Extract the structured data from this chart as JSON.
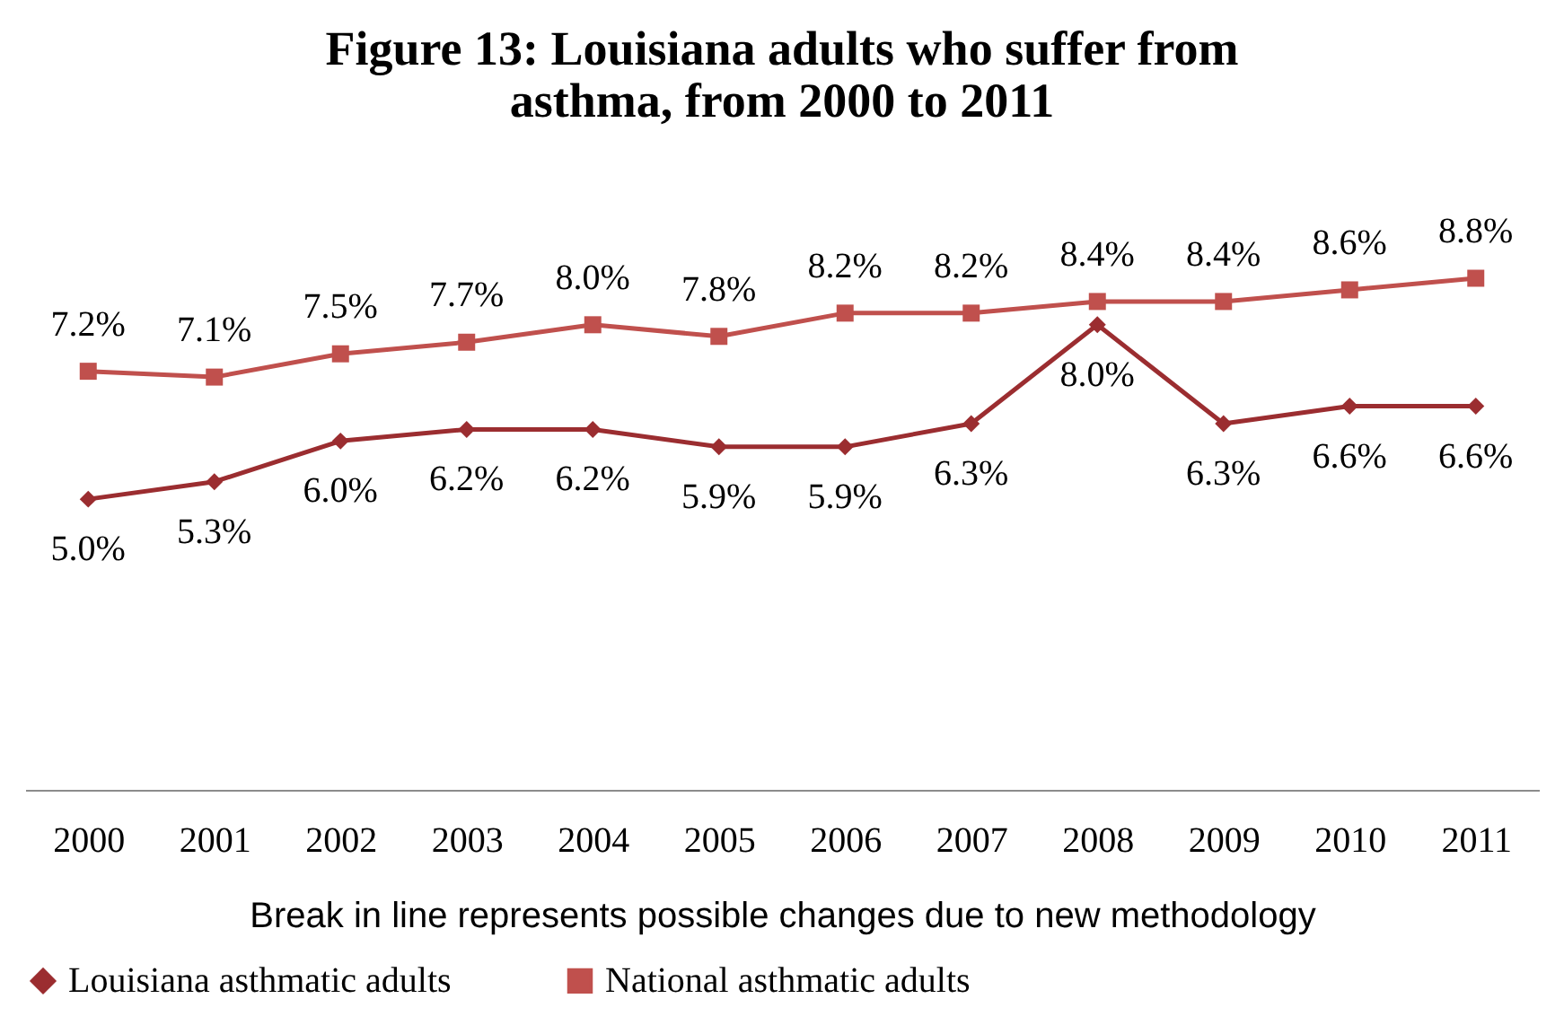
{
  "chart_data": {
    "type": "line",
    "title": [
      "Figure 13: Louisiana adults who suffer from",
      "asthma, from 2000 to 2011"
    ],
    "categories": [
      "2000",
      "2001",
      "2002",
      "2003",
      "2004",
      "2005",
      "2006",
      "2007",
      "2008",
      "2009",
      "2010",
      "2011"
    ],
    "series": [
      {
        "name": "Louisiana asthmatic adults",
        "color": "#9b2d30",
        "marker": "diamond",
        "values": [
          5.0,
          5.3,
          6.0,
          6.2,
          6.2,
          5.9,
          5.9,
          6.3,
          8.0,
          6.3,
          6.6,
          6.6
        ],
        "value_labels": [
          "5.0%",
          "5.3%",
          "6.0%",
          "6.2%",
          "6.2%",
          "5.9%",
          "5.9%",
          "6.3%",
          "8.0%",
          "6.3%",
          "6.6%",
          "6.6%"
        ]
      },
      {
        "name": "National asthmatic adults",
        "color": "#c0504d",
        "marker": "square",
        "values": [
          7.2,
          7.1,
          7.5,
          7.7,
          8.0,
          7.8,
          8.2,
          8.2,
          8.4,
          8.4,
          8.6,
          8.8
        ],
        "value_labels": [
          "7.2%",
          "7.1%",
          "7.5%",
          "7.7%",
          "8.0%",
          "7.8%",
          "8.2%",
          "8.2%",
          "8.4%",
          "8.4%",
          "8.6%",
          "8.8%"
        ]
      }
    ],
    "legend": "bottom",
    "annotations": [
      "Break in line represents possible changes due to new  methodology"
    ]
  }
}
